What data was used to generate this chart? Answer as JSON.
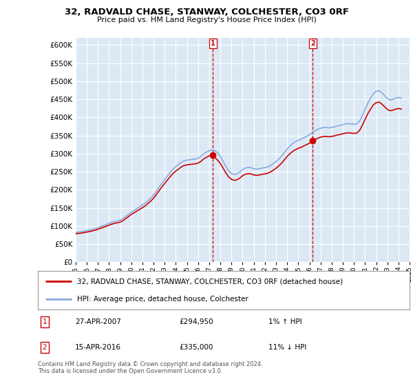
{
  "title": "32, RADVALD CHASE, STANWAY, COLCHESTER, CO3 0RF",
  "subtitle": "Price paid vs. HM Land Registry's House Price Index (HPI)",
  "background_color": "#dce9f5",
  "outer_bg_color": "#ffffff",
  "ylim": [
    0,
    620000
  ],
  "yticks": [
    0,
    50000,
    100000,
    150000,
    200000,
    250000,
    300000,
    350000,
    400000,
    450000,
    500000,
    550000,
    600000
  ],
  "sale1": {
    "date": "27-APR-2007",
    "price": 294950,
    "label": "1",
    "hpi_pct": "1% ↑ HPI"
  },
  "sale2": {
    "date": "15-APR-2016",
    "price": 335000,
    "label": "2",
    "hpi_pct": "11% ↓ HPI"
  },
  "legend_line1": "32, RADVALD CHASE, STANWAY, COLCHESTER, CO3 0RF (detached house)",
  "legend_line2": "HPI: Average price, detached house, Colchester",
  "footer": "Contains HM Land Registry data © Crown copyright and database right 2024.\nThis data is licensed under the Open Government Licence v3.0.",
  "hpi_x": [
    1995,
    1995.25,
    1995.5,
    1995.75,
    1996,
    1996.25,
    1996.5,
    1996.75,
    1997,
    1997.25,
    1997.5,
    1997.75,
    1998,
    1998.25,
    1998.5,
    1998.75,
    1999,
    1999.25,
    1999.5,
    1999.75,
    2000,
    2000.25,
    2000.5,
    2000.75,
    2001,
    2001.25,
    2001.5,
    2001.75,
    2002,
    2002.25,
    2002.5,
    2002.75,
    2003,
    2003.25,
    2003.5,
    2003.75,
    2004,
    2004.25,
    2004.5,
    2004.75,
    2005,
    2005.25,
    2005.5,
    2005.75,
    2006,
    2006.25,
    2006.5,
    2006.75,
    2007,
    2007.25,
    2007.5,
    2007.75,
    2008,
    2008.25,
    2008.5,
    2008.75,
    2009,
    2009.25,
    2009.5,
    2009.75,
    2010,
    2010.25,
    2010.5,
    2010.75,
    2011,
    2011.25,
    2011.5,
    2011.75,
    2012,
    2012.25,
    2012.5,
    2012.75,
    2013,
    2013.25,
    2013.5,
    2013.75,
    2014,
    2014.25,
    2014.5,
    2014.75,
    2015,
    2015.25,
    2015.5,
    2015.75,
    2016,
    2016.25,
    2016.5,
    2016.75,
    2017,
    2017.25,
    2017.5,
    2017.75,
    2018,
    2018.25,
    2018.5,
    2018.75,
    2019,
    2019.25,
    2019.5,
    2019.75,
    2020,
    2020.25,
    2020.5,
    2020.75,
    2021,
    2021.25,
    2021.5,
    2021.75,
    2022,
    2022.25,
    2022.5,
    2022.75,
    2023,
    2023.25,
    2023.5,
    2023.75,
    2024,
    2024.25
  ],
  "hpi_y": [
    82000,
    83000,
    84000,
    85500,
    87000,
    88500,
    90500,
    92500,
    95000,
    98000,
    101000,
    104000,
    107000,
    110000,
    112500,
    114000,
    116000,
    120000,
    126000,
    132000,
    138000,
    143000,
    148000,
    153000,
    158000,
    163000,
    170000,
    177000,
    185000,
    196000,
    207000,
    218000,
    228000,
    238000,
    248000,
    257000,
    264000,
    270000,
    276000,
    280000,
    282000,
    283000,
    284000,
    285000,
    287000,
    292000,
    299000,
    304000,
    308000,
    310000,
    308000,
    302000,
    292000,
    278000,
    264000,
    252000,
    245000,
    242000,
    244000,
    249000,
    256000,
    260000,
    262000,
    261000,
    258000,
    257000,
    258000,
    260000,
    261000,
    263000,
    267000,
    272000,
    278000,
    285000,
    293000,
    303000,
    313000,
    321000,
    328000,
    333000,
    337000,
    340000,
    344000,
    348000,
    352000,
    358000,
    363000,
    367000,
    370000,
    372000,
    372000,
    371000,
    372000,
    374000,
    376000,
    378000,
    380000,
    382000,
    383000,
    382000,
    381000,
    382000,
    390000,
    405000,
    423000,
    440000,
    454000,
    466000,
    472000,
    474000,
    468000,
    460000,
    452000,
    448000,
    450000,
    453000,
    455000,
    453000
  ],
  "sale1_x": 2007.33,
  "sale1_y": 294950,
  "sale2_x": 2016.29,
  "sale2_y": 335000,
  "xmin": 1995,
  "xmax": 2025,
  "red_line_color": "#cc0000",
  "blue_line_color": "#88aadd",
  "grid_color": "#ffffff"
}
